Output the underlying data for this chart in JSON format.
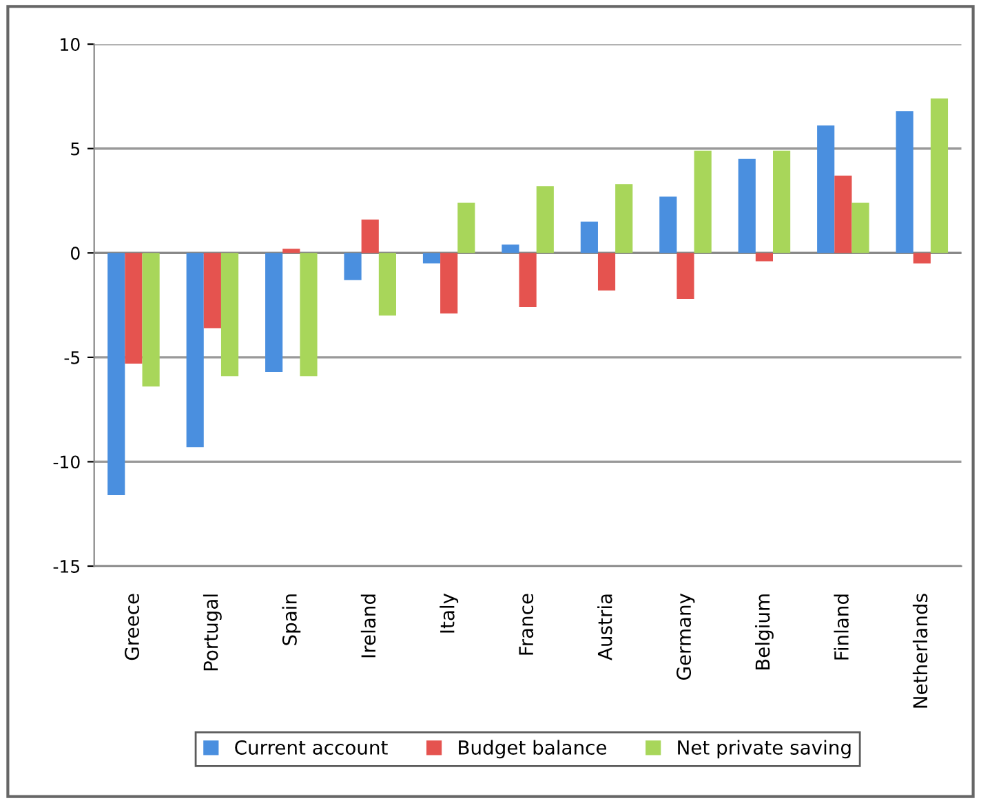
{
  "chart_data": {
    "type": "bar",
    "categories": [
      "Greece",
      "Portugal",
      "Spain",
      "Ireland",
      "Italy",
      "France",
      "Austria",
      "Germany",
      "Belgium",
      "Finland",
      "Netherlands"
    ],
    "series": [
      {
        "name": "Current account",
        "color": "#4a8fdf",
        "values": [
          -11.6,
          -9.3,
          -5.7,
          -1.3,
          -0.5,
          0.4,
          1.5,
          2.7,
          4.5,
          6.1,
          6.8
        ]
      },
      {
        "name": "Budget balance",
        "color": "#e5534f",
        "values": [
          -5.3,
          -3.6,
          0.2,
          1.6,
          -2.9,
          -2.6,
          -1.8,
          -2.2,
          -0.4,
          3.7,
          -0.5
        ]
      },
      {
        "name": "Net private saving",
        "color": "#a8d65a",
        "values": [
          -6.4,
          -5.9,
          -5.9,
          -3.0,
          2.4,
          3.2,
          3.3,
          4.9,
          4.9,
          2.4,
          7.4
        ]
      }
    ],
    "ylim": [
      -15,
      10
    ],
    "yticks": [
      -15,
      -10,
      -5,
      0,
      5,
      10
    ],
    "grid": "y",
    "legend": "bottom"
  }
}
